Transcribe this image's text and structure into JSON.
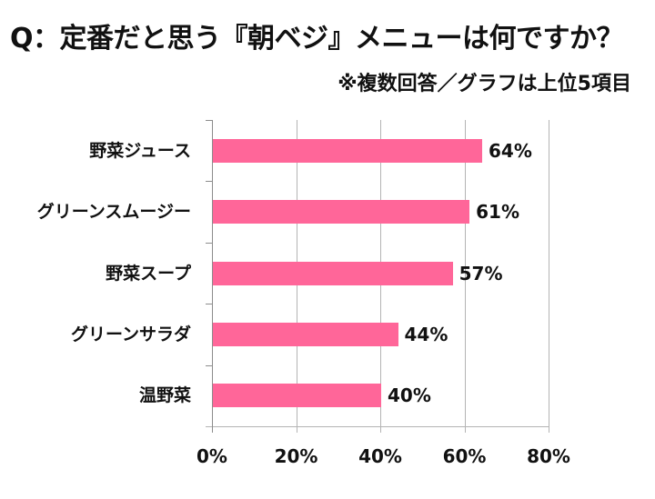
{
  "header": {
    "title": "Q：定番だと思う『朝ベジ』メニューは何ですか？",
    "note": "※複数回答／グラフは上位5項目"
  },
  "colors": {
    "bar": "#FF6699",
    "gridline": "#B4B4B4",
    "axis": "#8C8C8C",
    "text": "#111111",
    "background": "#FFFFFF"
  },
  "chart_data": {
    "type": "bar",
    "orientation": "horizontal",
    "title": "Q：定番だと思う『朝ベジ』メニューは何ですか？",
    "subtitle": "※複数回答／グラフは上位5項目",
    "categories": [
      "野菜ジュース",
      "グリーンスムージー",
      "野菜スープ",
      "グリーンサラダ",
      "温野菜"
    ],
    "values": [
      64,
      61,
      57,
      44,
      40
    ],
    "value_labels": [
      "64%",
      "61%",
      "57%",
      "44%",
      "40%"
    ],
    "xlabel": "",
    "ylabel": "",
    "xlim": [
      0,
      80
    ],
    "xticks": [
      "0%",
      "20%",
      "40%",
      "60%",
      "80%"
    ],
    "xtick_values": [
      0,
      20,
      40,
      60,
      80
    ],
    "grid": true,
    "legend": null
  }
}
